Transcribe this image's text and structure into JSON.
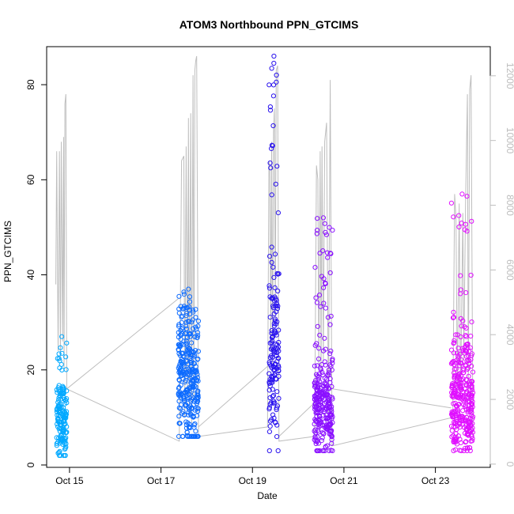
{
  "chart_data": {
    "type": "scatter",
    "title": "ATOM3 Northbound PPN_GTCIMS",
    "xlabel": "Date",
    "ylabel": "PPN_GTCIMS",
    "x_tick_labels": [
      "Oct 15",
      "Oct 17",
      "Oct 19",
      "Oct 21",
      "Oct 23"
    ],
    "x_tick_days": [
      15,
      17,
      19,
      21,
      23
    ],
    "xlim": [
      14.5,
      24.2
    ],
    "y_ticks": [
      0,
      20,
      40,
      60,
      80
    ],
    "ylim": [
      -0.5,
      88
    ],
    "right_axis": {
      "ticks": [
        0,
        2000,
        4000,
        6000,
        8000,
        10000,
        12000
      ],
      "ylim": [
        -100,
        12900
      ],
      "color": "#bebebe"
    },
    "grid": false,
    "clusters": [
      {
        "start": 14.72,
        "end": 14.94,
        "color": "#00a8ff",
        "min": 2,
        "mode": 9,
        "max": 27,
        "first": 15,
        "last": 16
      },
      {
        "start": 17.38,
        "end": 17.82,
        "color": "#0d6bff",
        "min": 6,
        "mode": 18,
        "max": 37,
        "first": 35,
        "last": 8
      },
      {
        "start": 19.36,
        "end": 19.58,
        "color": "#2a13ee",
        "min": 3,
        "mode": 20,
        "max": 86,
        "first": 21,
        "last": 6
      },
      {
        "start": 20.35,
        "end": 20.75,
        "color": "#8a10ff",
        "min": 3,
        "mode": 12,
        "max": 52,
        "first": 13,
        "last": 16
      },
      {
        "start": 23.35,
        "end": 23.82,
        "color": "#e010ff",
        "min": 3,
        "mode": 14,
        "max": 57,
        "first": 12,
        "last": 22
      }
    ],
    "secondary_series": {
      "color": "#bebebe",
      "points": [
        [
          14.7,
          38
        ],
        [
          14.72,
          66
        ],
        [
          14.75,
          24
        ],
        [
          14.78,
          66
        ],
        [
          14.8,
          22
        ],
        [
          14.82,
          68
        ],
        [
          14.85,
          26
        ],
        [
          14.87,
          69
        ],
        [
          14.88,
          20
        ],
        [
          14.9,
          76
        ],
        [
          14.92,
          78
        ],
        [
          14.94,
          16
        ],
        [
          17.4,
          5
        ],
        [
          17.45,
          64
        ],
        [
          17.5,
          65
        ],
        [
          17.52,
          10
        ],
        [
          17.55,
          67
        ],
        [
          17.58,
          15
        ],
        [
          17.6,
          73
        ],
        [
          17.62,
          12
        ],
        [
          17.65,
          74
        ],
        [
          17.67,
          8
        ],
        [
          17.7,
          82
        ],
        [
          17.72,
          14
        ],
        [
          17.74,
          83
        ],
        [
          17.76,
          85
        ],
        [
          17.78,
          86
        ],
        [
          17.82,
          6
        ],
        [
          19.33,
          8
        ],
        [
          19.36,
          64
        ],
        [
          19.38,
          62
        ],
        [
          19.4,
          24
        ],
        [
          19.42,
          68
        ],
        [
          19.44,
          20
        ],
        [
          19.46,
          70
        ],
        [
          19.48,
          75
        ],
        [
          19.5,
          30
        ],
        [
          19.52,
          83
        ],
        [
          19.55,
          84
        ],
        [
          19.58,
          5
        ],
        [
          20.36,
          6
        ],
        [
          20.4,
          63
        ],
        [
          20.43,
          60
        ],
        [
          20.45,
          20
        ],
        [
          20.48,
          66
        ],
        [
          20.5,
          18
        ],
        [
          20.52,
          67
        ],
        [
          20.55,
          22
        ],
        [
          20.58,
          68
        ],
        [
          20.62,
          72
        ],
        [
          20.66,
          10
        ],
        [
          20.7,
          81
        ],
        [
          20.74,
          4
        ],
        [
          23.38,
          10
        ],
        [
          23.42,
          57
        ],
        [
          23.45,
          52
        ],
        [
          23.48,
          16
        ],
        [
          23.52,
          55
        ],
        [
          23.55,
          14
        ],
        [
          23.6,
          53
        ],
        [
          23.62,
          22
        ],
        [
          23.66,
          56
        ],
        [
          23.7,
          78
        ],
        [
          23.72,
          14
        ],
        [
          23.75,
          79
        ],
        [
          23.78,
          82
        ],
        [
          23.82,
          6
        ]
      ]
    }
  }
}
